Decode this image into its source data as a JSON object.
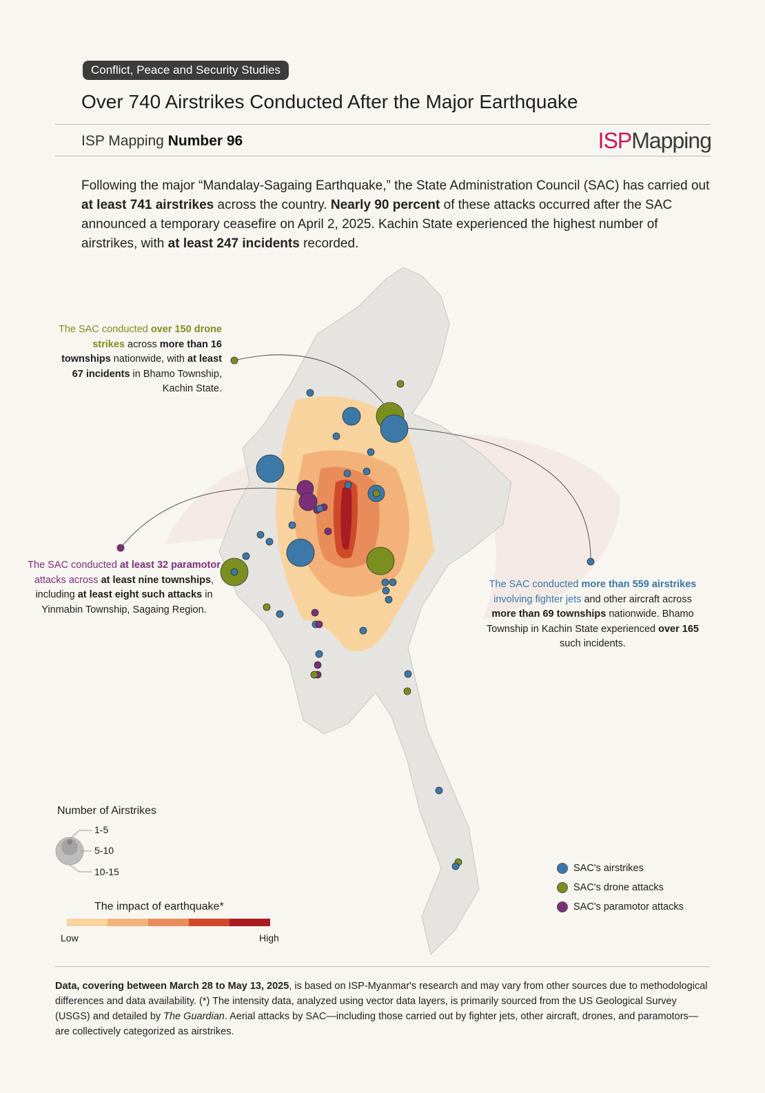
{
  "header": {
    "category": "Conflict, Peace and Security Studies",
    "title": "Over 740 Airstrikes Conducted After the Major Earthquake",
    "series_prefix": "ISP Mapping",
    "series_number": "Number 96",
    "logo_isp": "ISP",
    "logo_mapping": "Mapping"
  },
  "intro": {
    "p1": "Following the major “Mandalay-Sagaing Earthquake,” the State Administration Council (SAC)  has carried out ",
    "b1": "at least 741 airstrikes",
    "p2": " across the country. ",
    "b2": "Nearly 90 percent",
    "p3": " of these attacks occurred after the SAC announced a temporary ceasefire on April 2, 2025. Kachin State experienced the highest number of airstrikes, with ",
    "b3": "at least 247 incidents",
    "p4": " recorded."
  },
  "annotations": {
    "drone": [
      "The SAC conducted ",
      "over 150 drone strikes",
      " across ",
      "more than 16 townships",
      " nationwide, with ",
      "at least 67 incidents",
      " in Bhamo Township, Kachin State."
    ],
    "paramotor": [
      "The SAC conducted ",
      "at least 32 paramotor",
      " attacks across ",
      "at least nine townships",
      ", including ",
      "at least eight such attacks",
      " in Yinmabin Township, Sagaing Region."
    ],
    "airstrike": [
      "The SAC conducted ",
      "more than 559 airstrikes",
      " involving fighter jets",
      " and other aircraft across ",
      "more than 69 townships",
      " nationwide. Bhamo Township in Kachin State experienced ",
      "over 165",
      " such incidents."
    ]
  },
  "legend": {
    "size_title": "Number of Airstrikes",
    "sizes": [
      "1-5",
      "5-10",
      "10-15"
    ],
    "impact_title": "The impact of earthquake*",
    "impact_low": "Low",
    "impact_high": "High",
    "impact_colors": [
      "#f8d39e",
      "#f2b27a",
      "#e88d5a",
      "#cf4a2a",
      "#a81d22"
    ],
    "categories": [
      {
        "label": "SAC's airstrikes",
        "color": "#3c78a8"
      },
      {
        "label": "SAC's drone attacks",
        "color": "#7a8f1e"
      },
      {
        "label": "SAC's paramotor attacks",
        "color": "#7b2f7a"
      }
    ]
  },
  "footer": {
    "b1": "Data, covering between March 28 to May 13, 2025",
    "t1": ", is based on ISP-Myanmar's research and may vary from other sources due to methodological differences and data availability. (*) The intensity data, analyzed using vector data layers, is primarily sourced from the US Geological Survey (USGS) and detailed by ",
    "i1": "The Guardian",
    "t2": ". Aerial attacks by SAC—including those carried out by fighter jets, other aircraft, drones, and paramotors—are collectively categorized as airstrikes."
  }
}
